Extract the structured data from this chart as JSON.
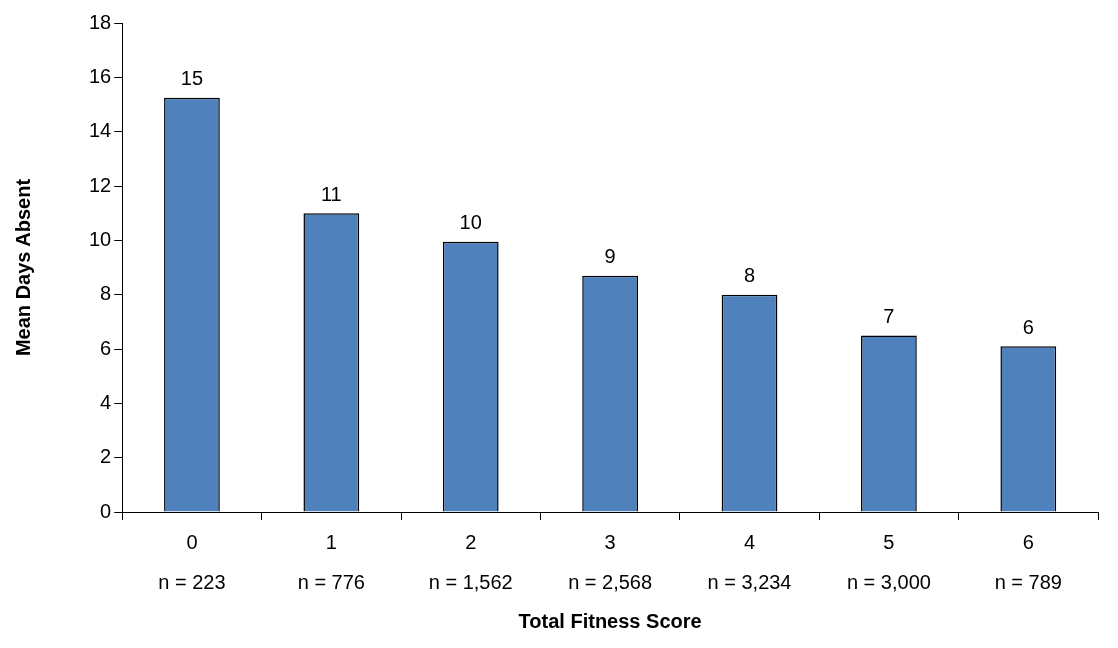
{
  "chart_data": {
    "type": "bar",
    "xlabel": "Total Fitness Score",
    "ylabel": "Mean Days Absent",
    "categories": [
      "0\nn = 223",
      "1\nn = 776",
      "2\nn = 1,562",
      "3\nn = 2,568",
      "4\nn = 3,234",
      "5\nn = 3,000",
      "6\nn = 789"
    ],
    "values": [
      15.25,
      11,
      9.95,
      8.7,
      8,
      6.5,
      6.1
    ],
    "value_labels": [
      "15",
      "11",
      "10",
      "9",
      "8",
      "7",
      "6"
    ],
    "color": "#4f81bd",
    "ylim": [
      0,
      18
    ],
    "yticks": [
      0,
      2,
      4,
      6,
      8,
      10,
      12,
      14,
      16,
      18
    ]
  }
}
